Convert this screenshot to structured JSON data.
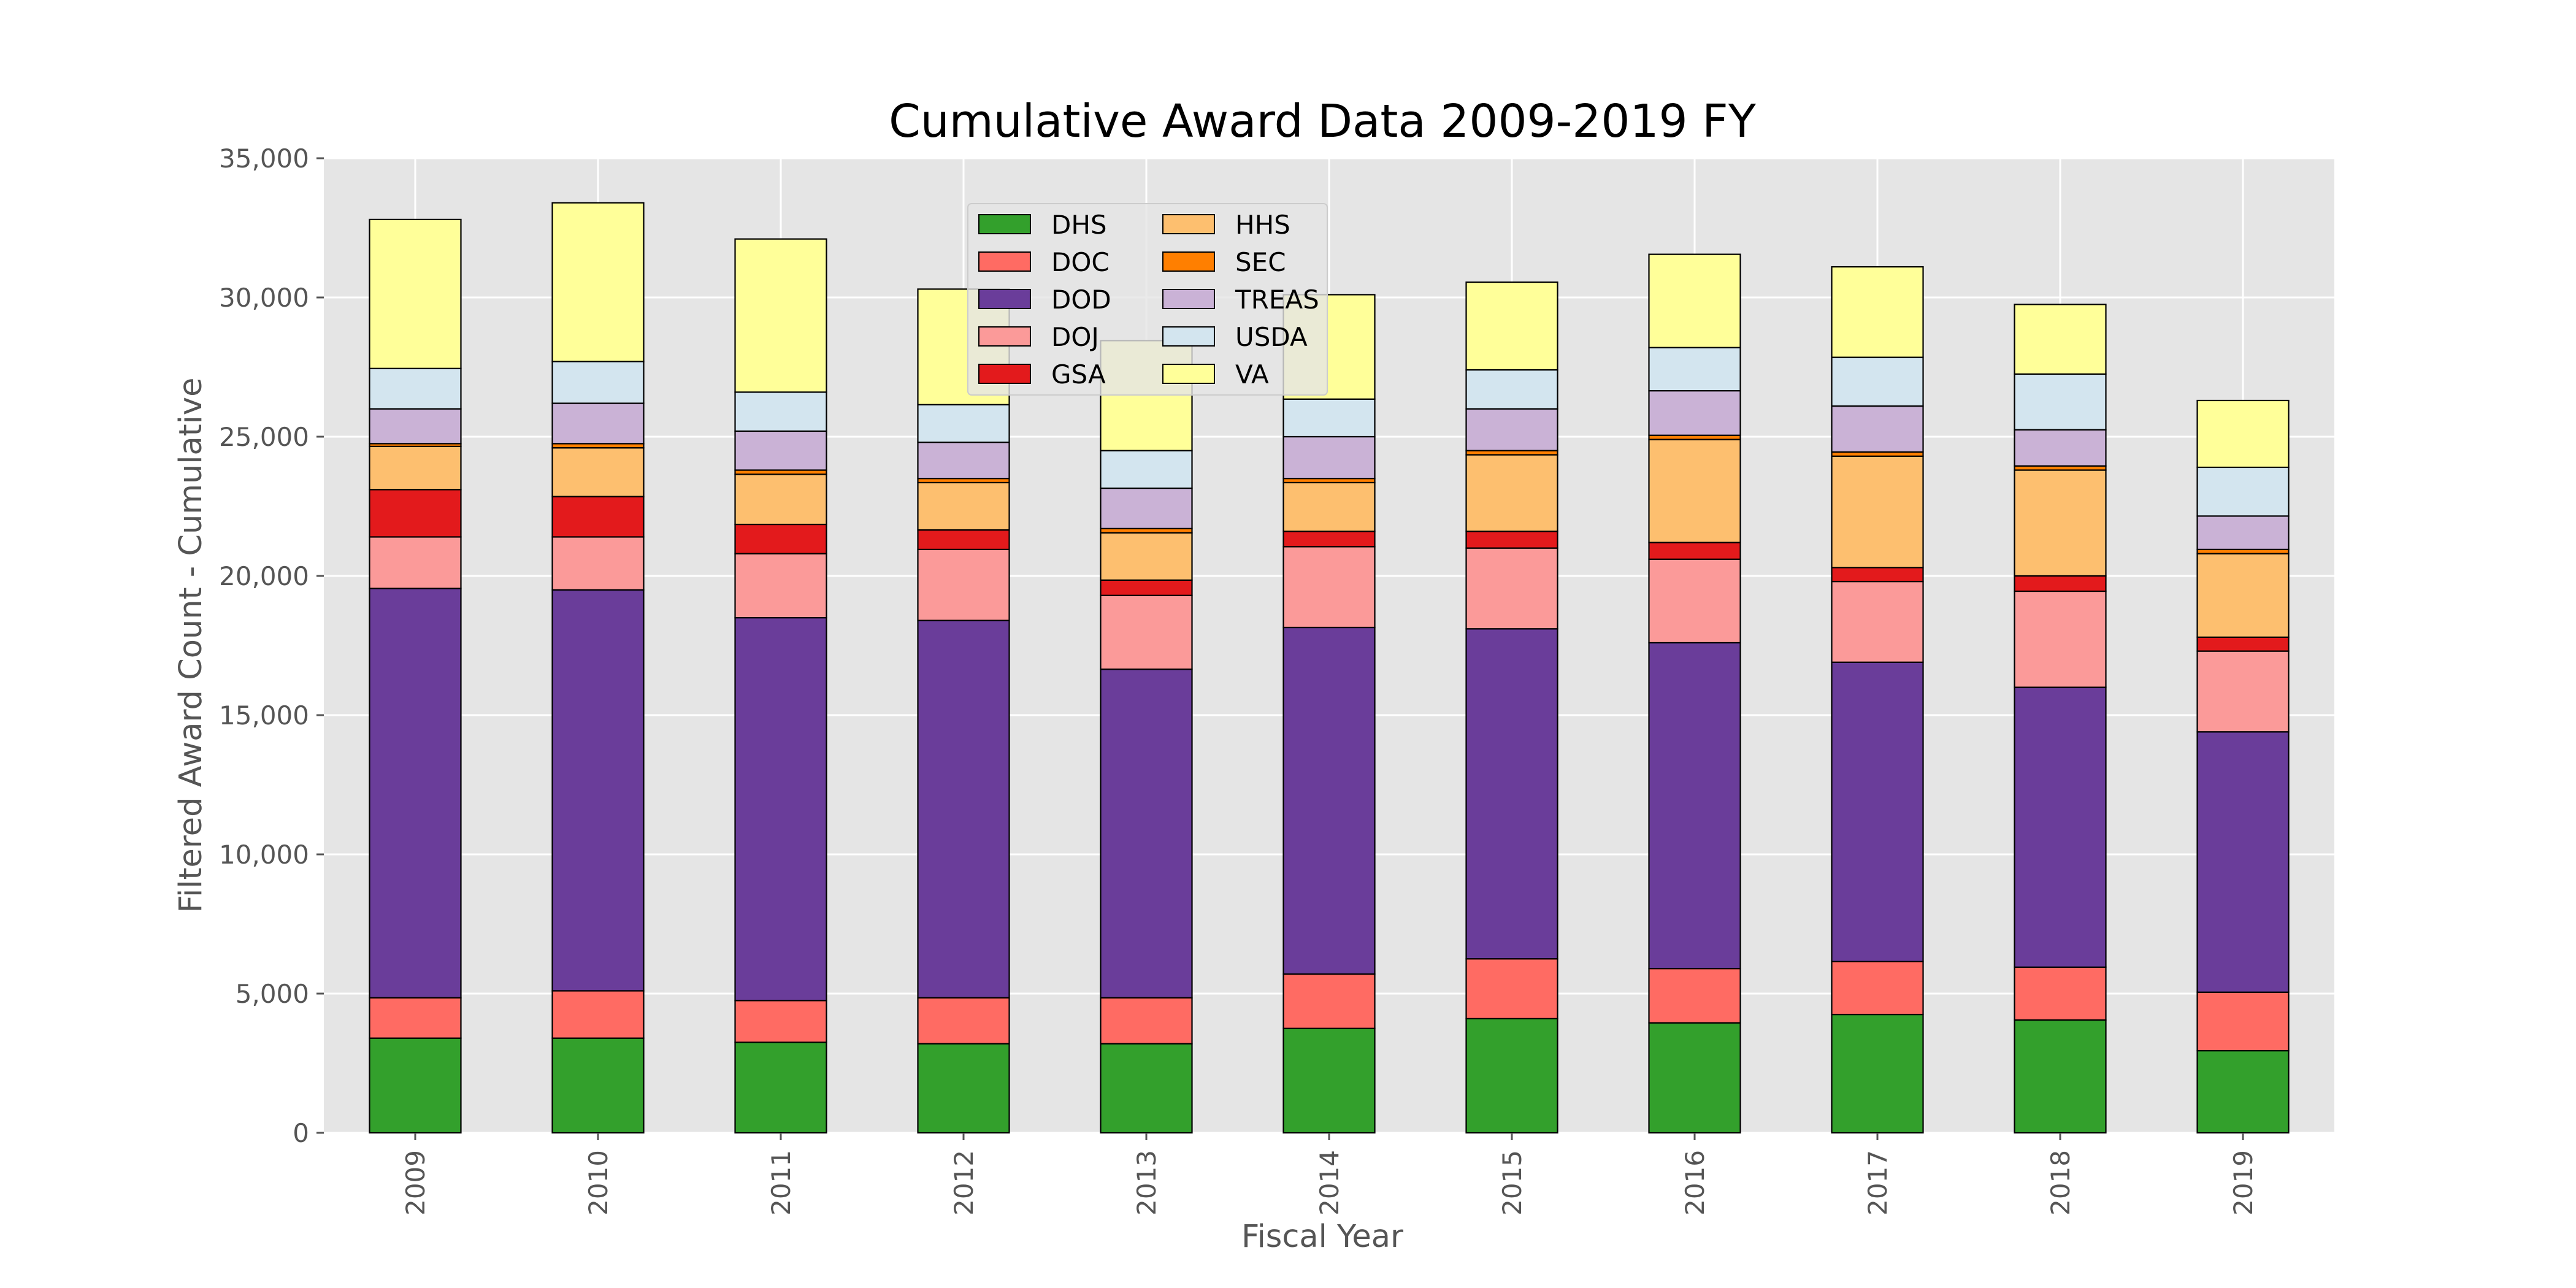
{
  "chart_data": {
    "type": "bar",
    "stacked": true,
    "title": "Cumulative Award Data 2009-2019 FY",
    "xlabel": "Fiscal Year",
    "ylabel": "Filtered Award Count - Cumulative",
    "ylim": [
      0,
      35000
    ],
    "yticks": [
      0,
      5000,
      10000,
      15000,
      20000,
      25000,
      30000,
      35000
    ],
    "ytick_labels": [
      "0",
      "5,000",
      "10,000",
      "15,000",
      "20,000",
      "25,000",
      "30,000",
      "35,000"
    ],
    "grid": true,
    "legend_position": "top-center",
    "legend_columns": 2,
    "categories": [
      "2009",
      "2010",
      "2011",
      "2012",
      "2013",
      "2014",
      "2015",
      "2016",
      "2017",
      "2018",
      "2019"
    ],
    "series": [
      {
        "name": "DHS",
        "color": "#33a02c",
        "values": [
          3400,
          3400,
          3250,
          3200,
          3200,
          3750,
          4100,
          3950,
          4250,
          4050,
          2950
        ]
      },
      {
        "name": "DOC",
        "color": "#ff6b63",
        "values": [
          1450,
          1700,
          1500,
          1650,
          1650,
          1950,
          2150,
          1950,
          1900,
          1900,
          2100
        ]
      },
      {
        "name": "DOD",
        "color": "#6a3d9a",
        "values": [
          14700,
          14400,
          13750,
          13550,
          11800,
          12450,
          11850,
          11700,
          10750,
          10050,
          9350
        ]
      },
      {
        "name": "DOJ",
        "color": "#fb9a99",
        "values": [
          1850,
          1900,
          2300,
          2550,
          2650,
          2900,
          2900,
          3000,
          2900,
          3450,
          2900
        ]
      },
      {
        "name": "GSA",
        "color": "#e31a1c",
        "values": [
          1700,
          1450,
          1050,
          700,
          550,
          550,
          600,
          600,
          500,
          550,
          500
        ]
      },
      {
        "name": "HHS",
        "color": "#fdbf6f",
        "values": [
          1550,
          1750,
          1800,
          1700,
          1700,
          1750,
          2750,
          3700,
          4000,
          3800,
          3000
        ]
      },
      {
        "name": "SEC",
        "color": "#ff7f00",
        "values": [
          100,
          150,
          150,
          150,
          150,
          150,
          150,
          150,
          150,
          150,
          150
        ]
      },
      {
        "name": "TREAS",
        "color": "#cab2d6",
        "values": [
          1250,
          1450,
          1400,
          1300,
          1450,
          1500,
          1500,
          1600,
          1650,
          1300,
          1200
        ]
      },
      {
        "name": "USDA",
        "color": "#d3e5ef",
        "values": [
          1450,
          1500,
          1400,
          1350,
          1350,
          1350,
          1400,
          1550,
          1750,
          2000,
          1750
        ]
      },
      {
        "name": "VA",
        "color": "#ffff99",
        "values": [
          5350,
          5700,
          5500,
          4150,
          3950,
          3750,
          3150,
          3350,
          3250,
          2500,
          2400
        ]
      }
    ]
  }
}
